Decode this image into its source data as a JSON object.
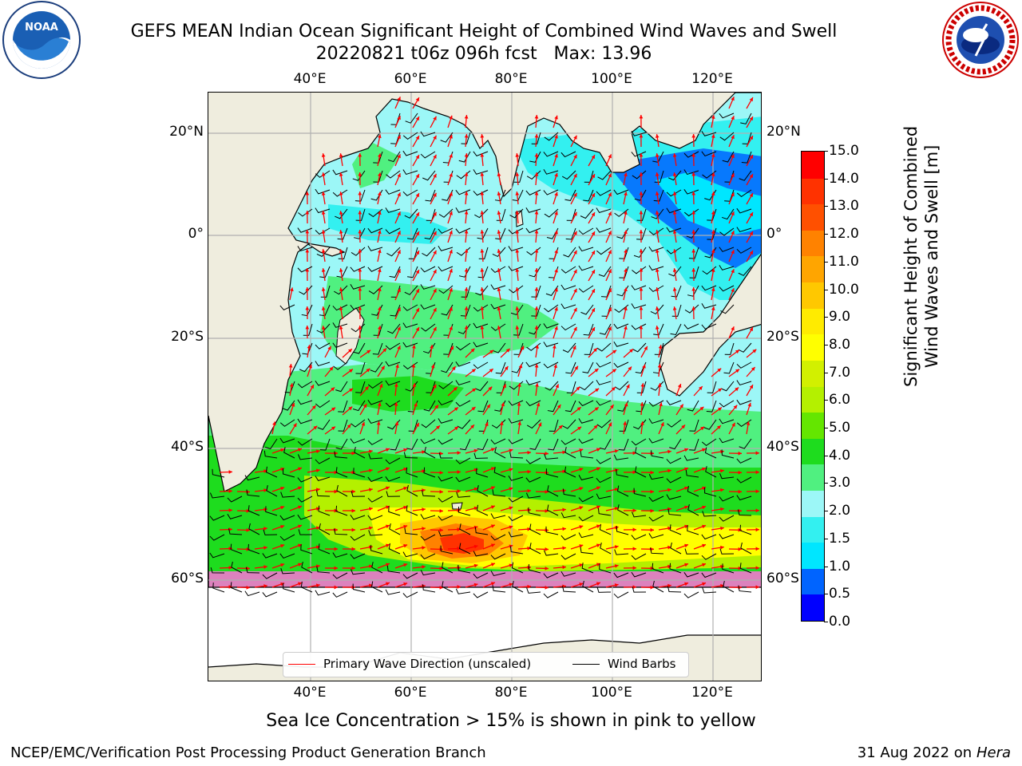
{
  "title": {
    "line1": "GEFS MEAN Indian Ocean Significant Height of Combined Wind Waves and Swell",
    "line2": "20220821 t06z 096h fcst   Max: 13.96"
  },
  "logos": {
    "noaa": {
      "text": "NOAA",
      "ring_text": "NATIONAL OCEANIC AND ATMOSPHERIC ADMINISTRATION · U.S. DEPARTMENT OF COMMERCE"
    },
    "nws": {
      "ring_text": "NATIONAL WEATHER SERVICE"
    }
  },
  "map": {
    "lon_ticks_top": [
      "40°E",
      "60°E",
      "80°E",
      "100°E",
      "120°E"
    ],
    "lon_ticks_bottom": [
      "40°E",
      "60°E",
      "80°E",
      "100°E",
      "120°E"
    ],
    "lat_ticks_left": [
      "20°N",
      "0°",
      "20°S",
      "40°S",
      "60°S"
    ],
    "lat_ticks_right": [
      "20°N",
      "0°",
      "20°S",
      "40°S",
      "60°S"
    ],
    "lon_range": [
      20,
      130
    ],
    "lat_range": [
      -73,
      28
    ],
    "land_color": "#efedde",
    "wave_arrow_color": "#ff0000",
    "wind_barb_color": "#000000"
  },
  "colorbar": {
    "label_line1": "Significant Height of Combined",
    "label_line2": "Wind Waves and Swell [m]",
    "ticks": [
      "15.0",
      "14.0",
      "13.0",
      "12.0",
      "11.0",
      "10.0",
      "9.0",
      "8.0",
      "7.0",
      "6.0",
      "5.0",
      "4.0",
      "3.0",
      "2.0",
      "1.5",
      "1.0",
      "0.5",
      "0.0"
    ],
    "colors_bottom_to_top": [
      "#0000ff",
      "#0064ff",
      "#00e6ff",
      "#33f0f0",
      "#9cf7f7",
      "#50f080",
      "#1edc1e",
      "#64e600",
      "#b4f000",
      "#d2f000",
      "#ffff00",
      "#ffeb00",
      "#ffc800",
      "#ffa500",
      "#ff8200",
      "#ff5000",
      "#ff3200",
      "#ff0000"
    ]
  },
  "legend": {
    "wave_label": "Primary Wave Direction (unscaled)",
    "wind_label": "Wind Barbs"
  },
  "caption": "Sea Ice Concentration > 15% is shown in pink to yellow",
  "footer": {
    "left": "NCEP/EMC/Verification Post Processing Product Generation Branch",
    "right_date": "31 Aug 2022 on",
    "right_host": "Hera"
  }
}
